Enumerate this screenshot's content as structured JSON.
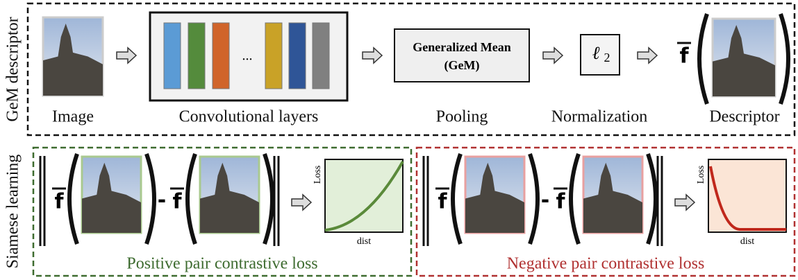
{
  "top": {
    "label": "GeM descriptor",
    "image": {
      "caption": "Image"
    },
    "conv": {
      "caption": "Convolutional layers",
      "ellipsis": "..."
    },
    "pooling": {
      "caption": "Pooling",
      "line1": "Generalized Mean",
      "line2": "(GeM)"
    },
    "normalization": {
      "caption": "Normalization",
      "symbol": "ℓ",
      "subscript": "2"
    },
    "descriptor": {
      "caption": "Descriptor",
      "symbol": "f"
    }
  },
  "bottom": {
    "label": "Siamese learning",
    "panels": [
      {
        "caption": "Positive pair contrastive loss",
        "symbol": "f",
        "minus": "-",
        "y_axis": "Loss",
        "x_axis": "dist"
      },
      {
        "caption": "Negative pair contrastive loss",
        "symbol": "f",
        "minus": "-",
        "y_axis": "Loss",
        "x_axis": "dist"
      }
    ]
  }
}
